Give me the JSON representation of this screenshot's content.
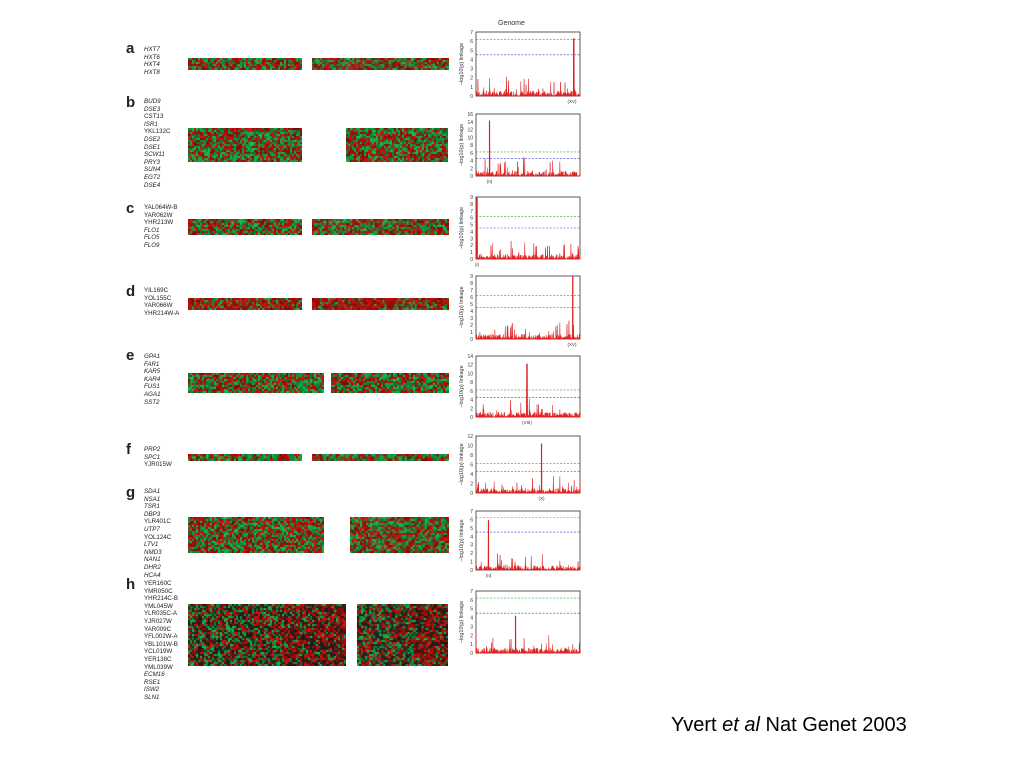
{
  "genome_title": "Genome",
  "ylabel": "−log10(p) linkage",
  "citation": {
    "author": "Yvert ",
    "etal": "et al",
    "rest": " Nat Genet 2003"
  },
  "colors": {
    "green": "#1a8a3a",
    "red": "#c8281e",
    "black": "#101010",
    "plot_red": "#e02020",
    "dash_green": "#3aa63a",
    "dash_blue": "#3a3ae0"
  },
  "panels": [
    {
      "letter": "a",
      "genes": [
        {
          "n": "HXT7",
          "i": true
        },
        {
          "n": "HXT6",
          "i": true
        },
        {
          "n": "HXT4",
          "i": true
        },
        {
          "n": "HXT8",
          "i": true
        }
      ],
      "heatmap_mode": "mixed",
      "chart_data": {
        "type": "line",
        "ylabel": "−log10(p) linkage",
        "yticks": [
          0,
          1,
          2,
          3,
          4,
          5,
          6,
          7
        ],
        "ylim": [
          0,
          7
        ],
        "peak_label": "(XV)",
        "peak_at": 0.94,
        "peak_value": 6.3,
        "threshold_green": 6.2,
        "threshold_blue": 4.5
      }
    },
    {
      "letter": "b",
      "genes": [
        {
          "n": "BUD9",
          "i": true
        },
        {
          "n": "DSE3",
          "i": true
        },
        {
          "n": "CST13",
          "i": true
        },
        {
          "n": "ISR1",
          "i": true
        },
        {
          "n": "YKL132C",
          "i": false
        },
        {
          "n": "DSE2",
          "i": true
        },
        {
          "n": "DSE1",
          "i": true
        },
        {
          "n": "SCW11",
          "i": true
        },
        {
          "n": "PRY3",
          "i": true
        },
        {
          "n": "SUN4",
          "i": true
        },
        {
          "n": "EGT2",
          "i": true
        },
        {
          "n": "DSE4",
          "i": true
        }
      ],
      "heatmap_mode": "green-red",
      "chart_data": {
        "type": "line",
        "ylabel": "−log10(p) linkage",
        "yticks": [
          0,
          2,
          4,
          6,
          8,
          10,
          12,
          14,
          16
        ],
        "ylim": [
          0,
          16
        ],
        "peak_label": "(II)",
        "peak_at": 0.13,
        "peak_value": 14.3,
        "threshold_green": 6.2,
        "threshold_blue": 4.5
      }
    },
    {
      "letter": "c",
      "genes": [
        {
          "n": "YAL064W-B",
          "i": false
        },
        {
          "n": "YAR062W",
          "i": false
        },
        {
          "n": "YHR213W",
          "i": false
        },
        {
          "n": "FLO1",
          "i": true
        },
        {
          "n": "FLO5",
          "i": true
        },
        {
          "n": "FLO9",
          "i": true
        }
      ],
      "heatmap_mode": "mixed",
      "chart_data": {
        "type": "line",
        "ylabel": "−log10(p) linkage",
        "yticks": [
          0,
          1,
          2,
          3,
          4,
          5,
          6,
          7,
          8,
          9
        ],
        "ylim": [
          0,
          9
        ],
        "peak_label": "(I)",
        "peak_at": 0.01,
        "peak_value": 9,
        "threshold_green": 6.2,
        "threshold_blue": 4.5
      }
    },
    {
      "letter": "d",
      "genes": [
        {
          "n": "YIL169C",
          "i": false
        },
        {
          "n": "YOL155C",
          "i": false
        },
        {
          "n": "YAR066W",
          "i": false
        },
        {
          "n": "YHR214W-A",
          "i": false
        }
      ],
      "heatmap_mode": "mixed-red",
      "chart_data": {
        "type": "line",
        "ylabel": "−log10(p) linkage",
        "yticks": [
          0,
          1,
          2,
          3,
          4,
          5,
          6,
          7,
          8,
          9
        ],
        "ylim": [
          0,
          9
        ],
        "peak_label": "(XV)",
        "peak_at": 0.93,
        "peak_value": 9,
        "threshold_green": 6.2,
        "threshold_blue": 4.5
      }
    },
    {
      "letter": "e",
      "genes": [
        {
          "n": "GPA1",
          "i": true
        },
        {
          "n": "FAR1",
          "i": true
        },
        {
          "n": "KAR5",
          "i": true
        },
        {
          "n": "KAR4",
          "i": true
        },
        {
          "n": "FUS1",
          "i": true
        },
        {
          "n": "AGA1",
          "i": true
        },
        {
          "n": "SST2",
          "i": true
        }
      ],
      "heatmap_mode": "green-red",
      "chart_data": {
        "type": "line",
        "ylabel": "−log10(p) linkage",
        "yticks": [
          0,
          2,
          4,
          6,
          8,
          10,
          12,
          14
        ],
        "ylim": [
          0,
          14
        ],
        "peak_label": "(VIII)",
        "peak_at": 0.49,
        "peak_value": 12.2,
        "threshold_green": 6.2,
        "threshold_blue": 4.5
      }
    },
    {
      "letter": "f",
      "genes": [
        {
          "n": "PRP2",
          "i": true
        },
        {
          "n": "SPC1",
          "i": true
        },
        {
          "n": "YJR015W",
          "i": false
        }
      ],
      "heatmap_mode": "mixed",
      "chart_data": {
        "type": "line",
        "ylabel": "−log10(p) linkage",
        "yticks": [
          0,
          2,
          4,
          6,
          8,
          10,
          12
        ],
        "ylim": [
          0,
          12
        ],
        "peak_label": "(X)",
        "peak_at": 0.63,
        "peak_value": 10.4,
        "threshold_green": 6.2,
        "threshold_blue": 4.5
      }
    },
    {
      "letter": "g",
      "genes": [
        {
          "n": "SDA1",
          "i": true
        },
        {
          "n": "NSA1",
          "i": true
        },
        {
          "n": "TSR1",
          "i": true
        },
        {
          "n": "DBP3",
          "i": true
        },
        {
          "n": "YLR401C",
          "i": false
        },
        {
          "n": "UTP7",
          "i": true
        },
        {
          "n": "YOL124C",
          "i": false
        },
        {
          "n": "LTV1",
          "i": true
        },
        {
          "n": "NMD3",
          "i": true
        },
        {
          "n": "NAN1",
          "i": true
        },
        {
          "n": "DHR2",
          "i": true
        },
        {
          "n": "HCA4",
          "i": true
        }
      ],
      "heatmap_mode": "green-red",
      "chart_data": {
        "type": "line",
        "ylabel": "−log10(p) linkage",
        "yticks": [
          0,
          1,
          2,
          3,
          4,
          5,
          6,
          7
        ],
        "ylim": [
          0,
          7
        ],
        "peak_label": "(II)",
        "peak_at": 0.12,
        "peak_value": 5.9,
        "threshold_green": 6.2,
        "threshold_blue": 4.5
      }
    },
    {
      "letter": "h",
      "genes": [
        {
          "n": "YER160C",
          "i": false
        },
        {
          "n": "YMR050C",
          "i": false
        },
        {
          "n": "YHR214C-B",
          "i": false
        },
        {
          "n": "YML045W",
          "i": false
        },
        {
          "n": "YLR035C-A",
          "i": false
        },
        {
          "n": "YJR027W",
          "i": false
        },
        {
          "n": "YAR009C",
          "i": false
        },
        {
          "n": "YFL002W-A",
          "i": false
        },
        {
          "n": "YBL101W-B",
          "i": false
        },
        {
          "n": "YCL019W",
          "i": false
        },
        {
          "n": "YER138C",
          "i": false
        },
        {
          "n": "YML039W",
          "i": false
        },
        {
          "n": "ECM16",
          "i": true
        },
        {
          "n": "RSE1",
          "i": true
        },
        {
          "n": "ISW2",
          "i": true
        },
        {
          "n": "SLN1",
          "i": true
        }
      ],
      "heatmap_mode": "dark-mixed",
      "chart_data": {
        "type": "line",
        "ylabel": "−log10(p) linkage",
        "yticks": [
          0,
          1,
          2,
          3,
          4,
          5,
          6,
          7
        ],
        "ylim": [
          0,
          7
        ],
        "peak_label": "",
        "peak_at": 0.38,
        "peak_value": 4.2,
        "threshold_green": 6.2,
        "threshold_blue": 4.5
      }
    }
  ]
}
